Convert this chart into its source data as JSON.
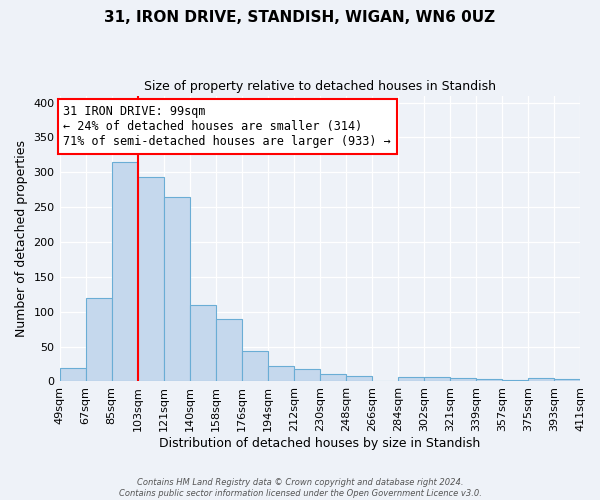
{
  "title": "31, IRON DRIVE, STANDISH, WIGAN, WN6 0UZ",
  "subtitle": "Size of property relative to detached houses in Standish",
  "xlabel": "Distribution of detached houses by size in Standish",
  "ylabel": "Number of detached properties",
  "bin_labels": [
    "49sqm",
    "67sqm",
    "85sqm",
    "103sqm",
    "121sqm",
    "140sqm",
    "158sqm",
    "176sqm",
    "194sqm",
    "212sqm",
    "230sqm",
    "248sqm",
    "266sqm",
    "284sqm",
    "302sqm",
    "321sqm",
    "339sqm",
    "357sqm",
    "375sqm",
    "393sqm",
    "411sqm"
  ],
  "bar_heights": [
    20,
    120,
    315,
    293,
    265,
    110,
    90,
    43,
    22,
    18,
    10,
    8,
    0,
    7,
    6,
    5,
    3,
    2,
    5,
    3
  ],
  "bar_color": "#c5d8ed",
  "bar_edge_color": "#6aadd5",
  "vline_color": "red",
  "vline_position": 3,
  "annotation_text": "31 IRON DRIVE: 99sqm\n← 24% of detached houses are smaller (314)\n71% of semi-detached houses are larger (933) →",
  "annotation_box_facecolor": "white",
  "annotation_box_edgecolor": "red",
  "ylim": [
    0,
    410
  ],
  "yticks": [
    0,
    50,
    100,
    150,
    200,
    250,
    300,
    350,
    400
  ],
  "footer_line1": "Contains HM Land Registry data © Crown copyright and database right 2024.",
  "footer_line2": "Contains public sector information licensed under the Open Government Licence v3.0.",
  "background_color": "#eef2f8",
  "plot_bg_color": "#eef2f8",
  "grid_color": "white"
}
